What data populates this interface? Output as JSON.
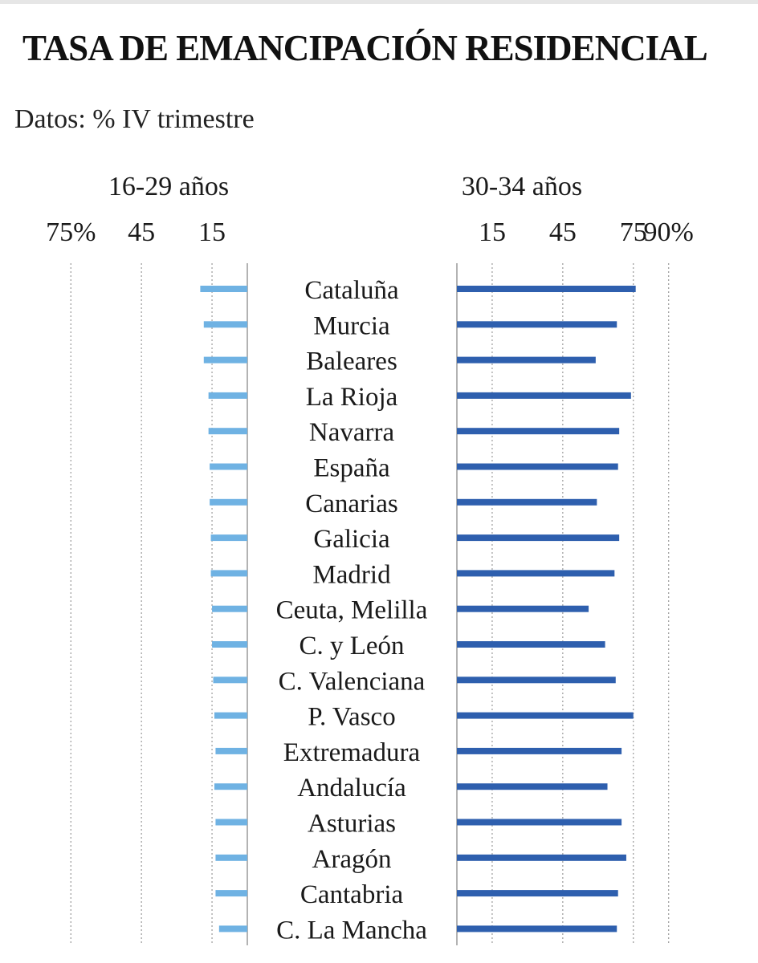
{
  "title": "TASA DE EMANCIPACIÓN RESIDENCIAL",
  "subtitle": "Datos: %  IV trimestre",
  "colors": {
    "left_bar": "#6fb2e3",
    "right_bar": "#2e5fae",
    "grid": "#9a9a9a",
    "axis": "#8a8a8a"
  },
  "chart_data": {
    "type": "bar",
    "orientation": "horizontal",
    "layout": "butterfly",
    "categories": [
      "Cataluña",
      "Murcia",
      "Baleares",
      "La Rioja",
      "Navarra",
      "España",
      "Canarias",
      "Galicia",
      "Madrid",
      "Ceuta, Melilla",
      "C. y León",
      "C. Valenciana",
      "P. Vasco",
      "Extremadura",
      "Andalucía",
      "Asturias",
      "Aragón",
      "Cantabria",
      "C. La Mancha"
    ],
    "series": [
      {
        "name": "16-29 años",
        "side": "left",
        "tick_labels": [
          "75%",
          "45",
          "15"
        ],
        "ticks": [
          75,
          45,
          15
        ],
        "values": [
          20,
          18.5,
          18.5,
          16.5,
          16.5,
          16,
          16,
          15.5,
          15.5,
          15,
          15,
          14.5,
          14,
          13.5,
          14,
          13.5,
          13.5,
          13.5,
          12
        ]
      },
      {
        "name": "30-34 años",
        "side": "right",
        "tick_labels": [
          "15",
          "45",
          "75",
          "90%"
        ],
        "ticks": [
          15,
          45,
          75,
          90
        ],
        "values": [
          76,
          68,
          59,
          74,
          69,
          68.5,
          59.5,
          69,
          67,
          56,
          63,
          67.5,
          75,
          70,
          64,
          70,
          72,
          68.5,
          68
        ]
      }
    ],
    "xlim": [
      0,
      100
    ],
    "grid": true
  }
}
